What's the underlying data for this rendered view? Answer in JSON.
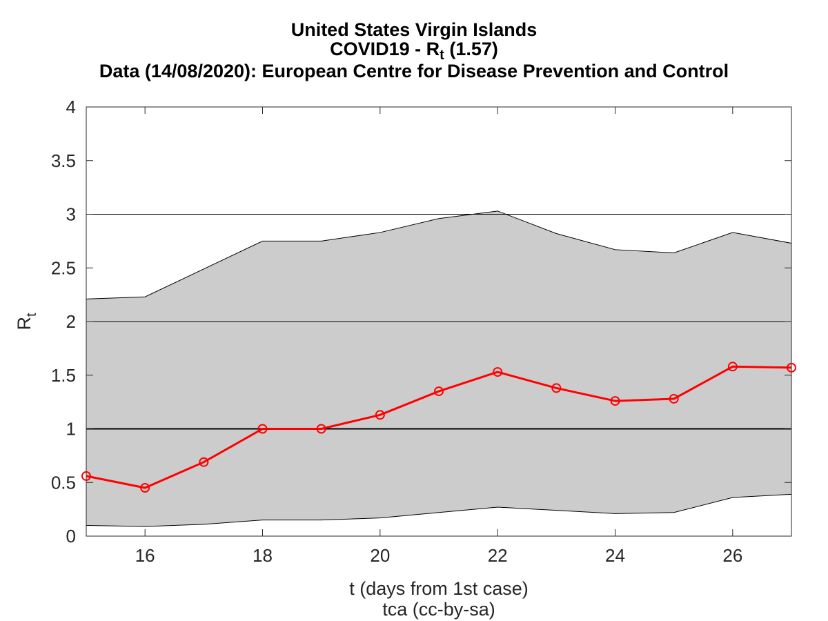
{
  "chart_data": {
    "type": "line",
    "title_lines": {
      "line1": "United States Virgin Islands",
      "line2_prefix": "COVID19 - R",
      "line2_sub": "t",
      "line2_suffix": " (1.57)",
      "line3": "Data (14/08/2020): European Centre for Disease Prevention and Control"
    },
    "xlabel": "t (days from 1st case)",
    "caption": "tca (cc-by-sa)",
    "ylabel_main": "R",
    "ylabel_sub": "t",
    "xlim": [
      15,
      27
    ],
    "ylim": [
      0,
      4
    ],
    "xticks": [
      16,
      18,
      20,
      22,
      24,
      26
    ],
    "yticks": [
      0,
      0.5,
      1,
      1.5,
      2,
      2.5,
      3,
      3.5,
      4
    ],
    "reference_lines": [
      1,
      2,
      3
    ],
    "grid": false,
    "x": [
      15,
      16,
      17,
      18,
      19,
      20,
      21,
      22,
      23,
      24,
      25,
      26,
      27
    ],
    "series": [
      {
        "values": [
          0.56,
          0.45,
          0.69,
          1.0,
          1.0,
          1.13,
          1.35,
          1.53,
          1.38,
          1.26,
          1.28,
          1.58,
          1.57
        ]
      }
    ],
    "band_upper": [
      2.21,
      2.23,
      2.49,
      2.75,
      2.75,
      2.83,
      2.96,
      3.03,
      2.82,
      2.67,
      2.64,
      2.83,
      2.73
    ],
    "band_lower": [
      0.1,
      0.09,
      0.11,
      0.15,
      0.15,
      0.17,
      0.22,
      0.27,
      0.24,
      0.21,
      0.22,
      0.36,
      0.39
    ],
    "colors": {
      "line": "#ff0000",
      "band": "#cccccc",
      "band_edge": "#000000",
      "reference": "#000000"
    }
  }
}
